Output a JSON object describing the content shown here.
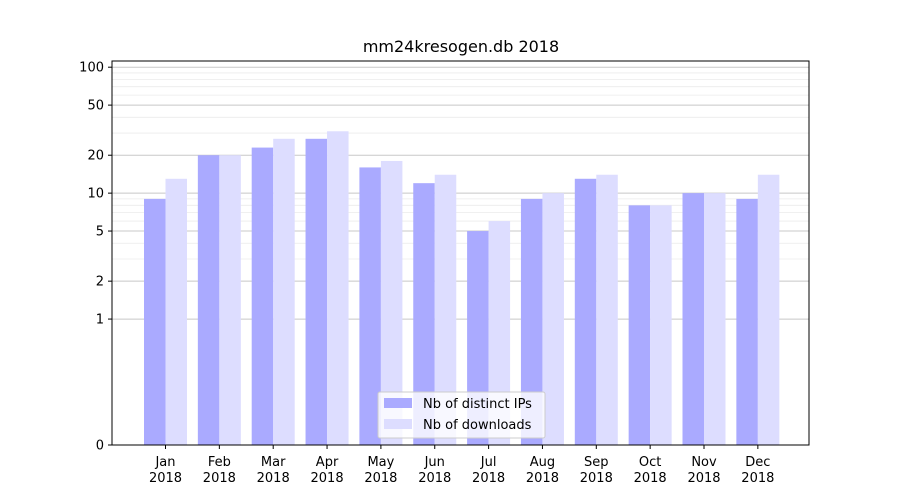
{
  "chart_data": {
    "type": "bar",
    "title": "mm24kresogen.db 2018",
    "xlabel": "",
    "ylabel": "",
    "yscale": "symlog",
    "y_ticks": [
      0,
      1,
      2,
      5,
      10,
      20,
      50,
      100
    ],
    "y_tick_labels": [
      "0",
      "1",
      "2",
      "5",
      "10",
      "20",
      "50",
      "100"
    ],
    "grid": true,
    "legend_position": "bottom-center",
    "categories": [
      [
        "Jan",
        "2018"
      ],
      [
        "Feb",
        "2018"
      ],
      [
        "Mar",
        "2018"
      ],
      [
        "Apr",
        "2018"
      ],
      [
        "May",
        "2018"
      ],
      [
        "Jun",
        "2018"
      ],
      [
        "Jul",
        "2018"
      ],
      [
        "Aug",
        "2018"
      ],
      [
        "Sep",
        "2018"
      ],
      [
        "Oct",
        "2018"
      ],
      [
        "Nov",
        "2018"
      ],
      [
        "Dec",
        "2018"
      ]
    ],
    "series": [
      {
        "name": "Nb of distinct IPs",
        "color": "#aaaaff",
        "values": [
          9,
          20,
          23,
          27,
          16,
          12,
          5,
          9,
          13,
          8,
          10,
          9
        ]
      },
      {
        "name": "Nb of downloads",
        "color": "#ddddff",
        "values": [
          13,
          20,
          27,
          31,
          18,
          14,
          6,
          10,
          14,
          8,
          10,
          14
        ]
      }
    ]
  }
}
